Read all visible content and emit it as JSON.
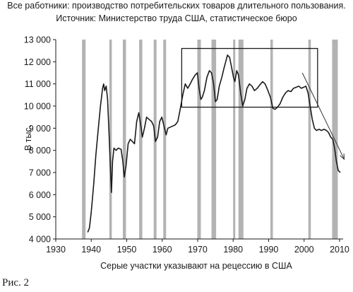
{
  "figure_label": "Рис. 2",
  "chart_data": {
    "type": "line",
    "title": "Все работники: производство потребительских товаров длительного пользования.",
    "subtitle": "Источник: Министерство труда США, статистическое бюро",
    "xlabel": "Серые участки указывают на рецессию в США",
    "ylabel": "В тыс.",
    "xlim": [
      1930,
      2011
    ],
    "ylim": [
      4000,
      13000
    ],
    "x_ticks": [
      1930,
      1940,
      1950,
      1960,
      1970,
      1980,
      1990,
      2000,
      2010
    ],
    "x_tick_labels": [
      "1930",
      "1940",
      "1950",
      "1960",
      "1970",
      "1980",
      "1990",
      "2000",
      "2010"
    ],
    "y_ticks": [
      4000,
      5000,
      6000,
      7000,
      8000,
      9000,
      10000,
      11000,
      12000,
      13000
    ],
    "y_tick_labels": [
      "4 000",
      "5 000",
      "6 000",
      "7 000",
      "8 000",
      "9 000",
      "10 000",
      "11 000",
      "12 000",
      "13 000"
    ],
    "grid": false,
    "recessions": [
      [
        1937.4,
        1938.4
      ],
      [
        1945.1,
        1945.8
      ],
      [
        1948.9,
        1949.8
      ],
      [
        1953.5,
        1954.4
      ],
      [
        1957.6,
        1958.4
      ],
      [
        1960.3,
        1961.1
      ],
      [
        1969.9,
        1970.9
      ],
      [
        1973.9,
        1975.2
      ],
      [
        1980.0,
        1980.5
      ],
      [
        1981.5,
        1982.9
      ],
      [
        1990.5,
        1991.2
      ],
      [
        2001.2,
        2001.9
      ],
      [
        2007.9,
        2009.5
      ]
    ],
    "highlight_box": {
      "x": [
        1965.5,
        2003.8
      ],
      "y": [
        9950,
        12600
      ]
    },
    "trend_arrow": {
      "from": [
        1999.5,
        11500
      ],
      "to": [
        2011.3,
        7600
      ]
    },
    "series": [
      {
        "values": [
          [
            1939.0,
            4300
          ],
          [
            1939.5,
            4500
          ],
          [
            1940.0,
            5200
          ],
          [
            1940.7,
            6500
          ],
          [
            1941.3,
            7800
          ],
          [
            1942.0,
            9000
          ],
          [
            1942.6,
            10000
          ],
          [
            1943.2,
            10800
          ],
          [
            1943.5,
            11000
          ],
          [
            1943.8,
            10700
          ],
          [
            1944.2,
            10900
          ],
          [
            1944.6,
            10300
          ],
          [
            1945.0,
            8800
          ],
          [
            1945.4,
            7200
          ],
          [
            1945.7,
            6100
          ],
          [
            1946.0,
            7500
          ],
          [
            1946.4,
            8100
          ],
          [
            1947.0,
            8000
          ],
          [
            1947.6,
            8100
          ],
          [
            1948.4,
            8050
          ],
          [
            1948.9,
            7500
          ],
          [
            1949.3,
            6800
          ],
          [
            1949.8,
            7300
          ],
          [
            1950.4,
            8300
          ],
          [
            1951.0,
            8500
          ],
          [
            1951.6,
            8400
          ],
          [
            1952.2,
            8300
          ],
          [
            1952.8,
            9300
          ],
          [
            1953.4,
            9700
          ],
          [
            1953.9,
            9200
          ],
          [
            1954.4,
            8600
          ],
          [
            1955.0,
            9000
          ],
          [
            1955.6,
            9500
          ],
          [
            1956.3,
            9400
          ],
          [
            1957.0,
            9300
          ],
          [
            1957.6,
            9100
          ],
          [
            1958.1,
            8400
          ],
          [
            1958.7,
            8600
          ],
          [
            1959.3,
            9300
          ],
          [
            1959.9,
            9500
          ],
          [
            1960.5,
            9100
          ],
          [
            1961.1,
            8700
          ],
          [
            1961.6,
            9000
          ],
          [
            1962.3,
            9050
          ],
          [
            1963.0,
            9100
          ],
          [
            1963.7,
            9150
          ],
          [
            1964.4,
            9300
          ],
          [
            1965.0,
            9800
          ],
          [
            1965.8,
            10500
          ],
          [
            1966.5,
            11000
          ],
          [
            1967.2,
            10800
          ],
          [
            1967.9,
            11000
          ],
          [
            1968.5,
            11200
          ],
          [
            1969.3,
            11400
          ],
          [
            1969.9,
            11500
          ],
          [
            1970.4,
            10800
          ],
          [
            1970.9,
            10300
          ],
          [
            1971.3,
            10400
          ],
          [
            1971.9,
            10700
          ],
          [
            1972.6,
            11300
          ],
          [
            1973.3,
            11600
          ],
          [
            1973.9,
            11500
          ],
          [
            1974.5,
            11000
          ],
          [
            1975.0,
            10200
          ],
          [
            1975.5,
            10300
          ],
          [
            1976.1,
            10900
          ],
          [
            1976.8,
            11300
          ],
          [
            1977.4,
            11700
          ],
          [
            1977.9,
            12000
          ],
          [
            1978.4,
            12300
          ],
          [
            1979.0,
            12200
          ],
          [
            1979.5,
            11800
          ],
          [
            1980.1,
            11300
          ],
          [
            1980.5,
            11100
          ],
          [
            1981.0,
            11600
          ],
          [
            1981.5,
            11400
          ],
          [
            1982.1,
            10600
          ],
          [
            1982.7,
            10000
          ],
          [
            1983.3,
            10300
          ],
          [
            1983.9,
            10800
          ],
          [
            1984.6,
            11000
          ],
          [
            1985.3,
            10900
          ],
          [
            1986.0,
            10700
          ],
          [
            1986.8,
            10800
          ],
          [
            1987.5,
            10950
          ],
          [
            1988.3,
            11100
          ],
          [
            1989.0,
            11000
          ],
          [
            1989.8,
            10700
          ],
          [
            1990.5,
            10400
          ],
          [
            1991.2,
            9900
          ],
          [
            1991.8,
            9850
          ],
          [
            1992.5,
            9950
          ],
          [
            1993.2,
            10100
          ],
          [
            1994.0,
            10400
          ],
          [
            1994.8,
            10600
          ],
          [
            1995.5,
            10700
          ],
          [
            1996.3,
            10650
          ],
          [
            1997.0,
            10800
          ],
          [
            1997.8,
            10850
          ],
          [
            1998.5,
            10900
          ],
          [
            1999.2,
            10800
          ],
          [
            1999.9,
            10850
          ],
          [
            2000.5,
            10900
          ],
          [
            2001.1,
            10600
          ],
          [
            2001.7,
            10000
          ],
          [
            2002.3,
            9400
          ],
          [
            2002.9,
            9000
          ],
          [
            2003.5,
            8900
          ],
          [
            2004.2,
            8950
          ],
          [
            2004.9,
            8900
          ],
          [
            2005.6,
            8950
          ],
          [
            2006.3,
            8900
          ],
          [
            2006.9,
            8800
          ],
          [
            2007.5,
            8600
          ],
          [
            2008.1,
            8500
          ],
          [
            2008.6,
            8100
          ],
          [
            2009.1,
            7500
          ],
          [
            2009.6,
            7100
          ],
          [
            2010.2,
            7000
          ]
        ]
      }
    ]
  },
  "colors": {
    "recession": "#b3b3b3",
    "line": "#1a1a1a",
    "axis": "#1a1a1a",
    "text": "#1a1a1a",
    "arrow": "#333333"
  }
}
